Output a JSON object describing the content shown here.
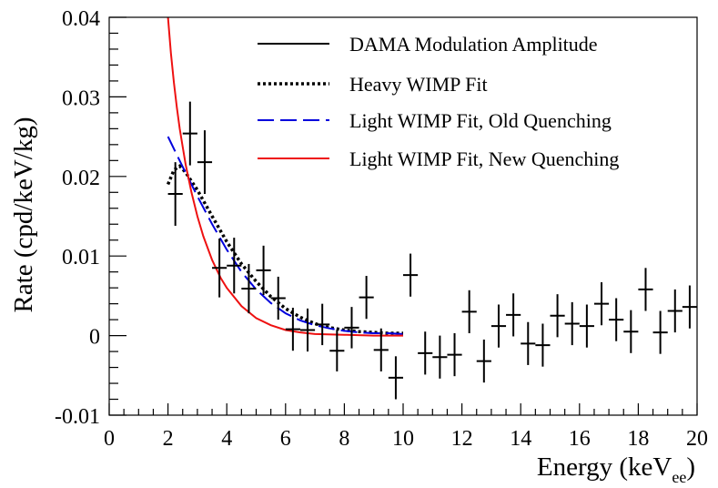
{
  "chart_data": {
    "type": "scatter",
    "xlabel": "Energy (keV",
    "xlabel_sub": "ee",
    "xlabel_close": ")",
    "ylabel": "Rate (cpd/keV/kg)",
    "xlim": [
      0,
      20
    ],
    "ylim": [
      -0.01,
      0.04
    ],
    "grid": false,
    "legend_position": "top-right",
    "x_ticks": [
      {
        "value": 0,
        "label": "0"
      },
      {
        "value": 2,
        "label": "2"
      },
      {
        "value": 4,
        "label": "4"
      },
      {
        "value": 6,
        "label": "6"
      },
      {
        "value": 8,
        "label": "8"
      },
      {
        "value": 10,
        "label": "10"
      },
      {
        "value": 12,
        "label": "12"
      },
      {
        "value": 14,
        "label": "14"
      },
      {
        "value": 16,
        "label": "16"
      },
      {
        "value": 18,
        "label": "18"
      },
      {
        "value": 20,
        "label": "20"
      }
    ],
    "y_ticks": [
      {
        "value": -0.01,
        "label": "-0.01"
      },
      {
        "value": 0,
        "label": "0"
      },
      {
        "value": 0.01,
        "label": "0.01"
      },
      {
        "value": 0.02,
        "label": "0.02"
      },
      {
        "value": 0.03,
        "label": "0.03"
      },
      {
        "value": 0.04,
        "label": "0.04"
      }
    ],
    "data_series": {
      "name": "DAMA Modulation Amplitude",
      "color": "#000000",
      "x_half_width": 0.25,
      "points": [
        {
          "x": 2.25,
          "y": 0.0178,
          "err": 0.004
        },
        {
          "x": 2.75,
          "y": 0.0254,
          "err": 0.004
        },
        {
          "x": 3.25,
          "y": 0.0218,
          "err": 0.004
        },
        {
          "x": 3.75,
          "y": 0.0085,
          "err": 0.0037
        },
        {
          "x": 4.25,
          "y": 0.0088,
          "err": 0.0035
        },
        {
          "x": 4.75,
          "y": 0.0059,
          "err": 0.0031
        },
        {
          "x": 5.25,
          "y": 0.0082,
          "err": 0.0031
        },
        {
          "x": 5.75,
          "y": 0.0047,
          "err": 0.0027
        },
        {
          "x": 6.25,
          "y": 0.0008,
          "err": 0.0027
        },
        {
          "x": 6.75,
          "y": 0.0007,
          "err": 0.0027
        },
        {
          "x": 7.25,
          "y": 0.0014,
          "err": 0.0026
        },
        {
          "x": 7.75,
          "y": -0.0019,
          "err": 0.0026
        },
        {
          "x": 8.25,
          "y": 0.001,
          "err": 0.0026
        },
        {
          "x": 8.75,
          "y": 0.0048,
          "err": 0.0027
        },
        {
          "x": 9.25,
          "y": -0.0018,
          "err": 0.0027
        },
        {
          "x": 9.75,
          "y": -0.0053,
          "err": 0.0027
        },
        {
          "x": 10.25,
          "y": 0.0076,
          "err": 0.0027
        },
        {
          "x": 10.75,
          "y": -0.0022,
          "err": 0.0027
        },
        {
          "x": 11.25,
          "y": -0.0027,
          "err": 0.0027
        },
        {
          "x": 11.75,
          "y": -0.0024,
          "err": 0.0027
        },
        {
          "x": 12.25,
          "y": 0.003,
          "err": 0.0027
        },
        {
          "x": 12.75,
          "y": -0.0032,
          "err": 0.0027
        },
        {
          "x": 13.25,
          "y": 0.0012,
          "err": 0.0027
        },
        {
          "x": 13.75,
          "y": 0.0026,
          "err": 0.0027
        },
        {
          "x": 14.25,
          "y": -0.001,
          "err": 0.0027
        },
        {
          "x": 14.75,
          "y": -0.0012,
          "err": 0.0027
        },
        {
          "x": 15.25,
          "y": 0.0025,
          "err": 0.0027
        },
        {
          "x": 15.75,
          "y": 0.0015,
          "err": 0.0027
        },
        {
          "x": 16.25,
          "y": 0.0012,
          "err": 0.0027
        },
        {
          "x": 16.75,
          "y": 0.004,
          "err": 0.0027
        },
        {
          "x": 17.25,
          "y": 0.002,
          "err": 0.0027
        },
        {
          "x": 17.75,
          "y": 0.0005,
          "err": 0.0027
        },
        {
          "x": 18.25,
          "y": 0.0058,
          "err": 0.0027
        },
        {
          "x": 18.75,
          "y": 0.0004,
          "err": 0.0027
        },
        {
          "x": 19.25,
          "y": 0.0031,
          "err": 0.0027
        },
        {
          "x": 19.75,
          "y": 0.0036,
          "err": 0.0027
        }
      ]
    },
    "fit_series": [
      {
        "name": "Heavy WIMP Fit",
        "color": "#000000",
        "style": "dotted",
        "x": [
          2.0,
          2.2,
          2.4,
          2.6,
          2.8,
          3.0,
          3.5,
          4.0,
          4.5,
          5.0,
          5.5,
          6.0,
          6.5,
          7.0,
          7.5,
          8.0,
          8.5,
          9.0,
          9.5,
          10.0
        ],
        "y": [
          0.019,
          0.0208,
          0.0213,
          0.0205,
          0.0194,
          0.0183,
          0.015,
          0.0118,
          0.009,
          0.0068,
          0.0049,
          0.0034,
          0.0023,
          0.0015,
          0.001,
          0.0007,
          0.0005,
          0.0004,
          0.0003,
          0.0003
        ]
      },
      {
        "name": "Light WIMP Fit, Old Quenching",
        "color": "#0000dd",
        "style": "dashed",
        "x": [
          2.0,
          2.5,
          3.0,
          3.5,
          4.0,
          4.5,
          5.0,
          5.5,
          6.0,
          6.5,
          7.0,
          7.5,
          8.0,
          8.5,
          9.0,
          9.5,
          10.0
        ],
        "y": [
          0.025,
          0.0212,
          0.0175,
          0.014,
          0.0108,
          0.008,
          0.0058,
          0.0041,
          0.0028,
          0.0019,
          0.0013,
          0.0009,
          0.0006,
          0.0004,
          0.0003,
          0.0003,
          0.0002
        ]
      },
      {
        "name": "Light WIMP Fit, New Quenching",
        "color": "#ee1111",
        "style": "solid",
        "x": [
          2.0,
          2.1,
          2.2,
          2.3,
          2.4,
          2.5,
          2.6,
          2.8,
          3.0,
          3.2,
          3.5,
          3.8,
          4.0,
          4.5,
          5.0,
          5.5,
          6.0,
          6.5,
          7.0,
          8.0,
          9.0,
          10.0
        ],
        "y": [
          0.04,
          0.0355,
          0.0318,
          0.0287,
          0.026,
          0.0237,
          0.0215,
          0.018,
          0.015,
          0.0125,
          0.0095,
          0.0072,
          0.006,
          0.0037,
          0.0022,
          0.0013,
          0.0007,
          0.0004,
          0.0002,
          0.0001,
          0.0,
          0.0
        ]
      }
    ]
  }
}
